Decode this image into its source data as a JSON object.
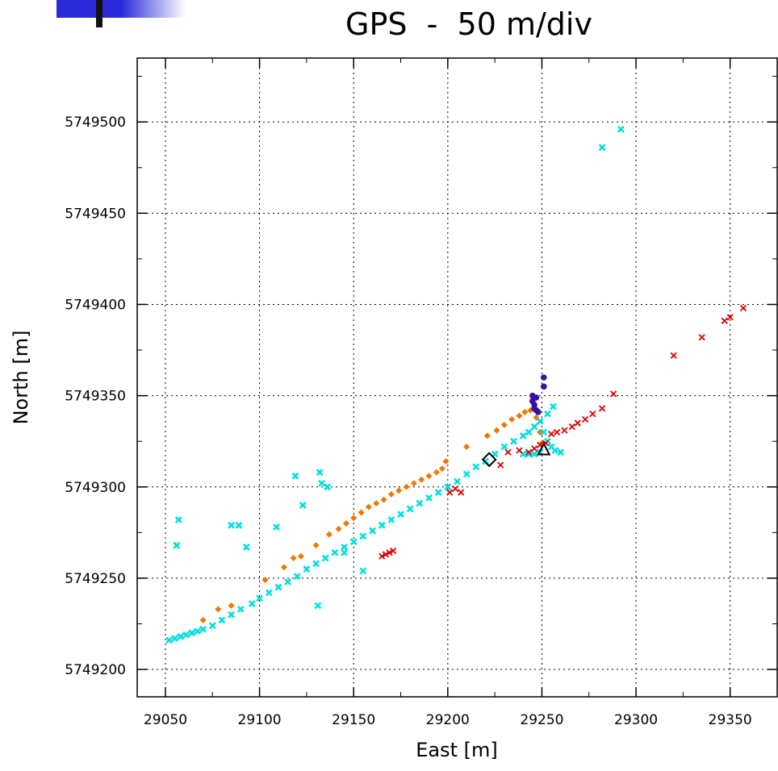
{
  "title": "GPS  -  50 m/div",
  "colors": {
    "orange": "#f07800",
    "cyan": "#00e0e0",
    "red": "#e00000",
    "purple": "#3a10a0",
    "logo_blue": "#2a2ad8"
  },
  "chart_data": {
    "type": "scatter",
    "xlabel": "East [m]",
    "ylabel": "North [m]",
    "xlim": [
      29035,
      29375
    ],
    "ylim": [
      5749185,
      5749535
    ],
    "xticks": [
      29050,
      29100,
      29150,
      29200,
      29250,
      29300,
      29350
    ],
    "yticks": [
      5749200,
      5749250,
      5749300,
      5749350,
      5749400,
      5749450,
      5749500
    ],
    "xtick_labels": [
      "29050",
      "29100",
      "29150",
      "29200",
      "29250",
      "29300",
      "29350"
    ],
    "ytick_labels": [
      "5749200",
      "5749250",
      "5749300",
      "5749350",
      "5749400",
      "5749450",
      "5749500"
    ],
    "grid": true,
    "series": [
      {
        "marker": "diamond-small",
        "color": "#f07800",
        "points": [
          [
            29070,
            5749227
          ],
          [
            29078,
            5749233
          ],
          [
            29085,
            5749235
          ],
          [
            29103,
            5749249
          ],
          [
            29113,
            5749256
          ],
          [
            29118,
            5749261
          ],
          [
            29122,
            5749262
          ],
          [
            29130,
            5749268
          ],
          [
            29137,
            5749274
          ],
          [
            29142,
            5749277
          ],
          [
            29146,
            5749280
          ],
          [
            29150,
            5749283
          ],
          [
            29154,
            5749286
          ],
          [
            29158,
            5749289
          ],
          [
            29162,
            5749291
          ],
          [
            29166,
            5749293
          ],
          [
            29170,
            5749296
          ],
          [
            29174,
            5749298
          ],
          [
            29178,
            5749300
          ],
          [
            29182,
            5749302
          ],
          [
            29186,
            5749304
          ],
          [
            29190,
            5749306
          ],
          [
            29194,
            5749308
          ],
          [
            29197,
            5749310
          ],
          [
            29199,
            5749314
          ],
          [
            29210,
            5749322
          ],
          [
            29221,
            5749328
          ],
          [
            29226,
            5749331
          ],
          [
            29230,
            5749334
          ],
          [
            29234,
            5749337
          ],
          [
            29238,
            5749339
          ],
          [
            29241,
            5749341
          ],
          [
            29244,
            5749342
          ],
          [
            29247,
            5749338
          ],
          [
            29249,
            5749330
          ],
          [
            29250,
            5749324
          ]
        ]
      },
      {
        "marker": "x-bold",
        "color": "#00e0e0",
        "points": [
          [
            29052,
            5749216
          ],
          [
            29055,
            5749217
          ],
          [
            29058,
            5749218
          ],
          [
            29061,
            5749219
          ],
          [
            29064,
            5749220
          ],
          [
            29067,
            5749221
          ],
          [
            29070,
            5749222
          ],
          [
            29075,
            5749224
          ],
          [
            29080,
            5749227
          ],
          [
            29085,
            5749230
          ],
          [
            29090,
            5749233
          ],
          [
            29096,
            5749236
          ],
          [
            29100,
            5749239
          ],
          [
            29105,
            5749242
          ],
          [
            29110,
            5749245
          ],
          [
            29115,
            5749248
          ],
          [
            29120,
            5749251
          ],
          [
            29125,
            5749255
          ],
          [
            29130,
            5749258
          ],
          [
            29135,
            5749261
          ],
          [
            29140,
            5749264
          ],
          [
            29145,
            5749267
          ],
          [
            29150,
            5749270
          ],
          [
            29155,
            5749273
          ],
          [
            29160,
            5749276
          ],
          [
            29165,
            5749279
          ],
          [
            29170,
            5749282
          ],
          [
            29175,
            5749285
          ],
          [
            29180,
            5749288
          ],
          [
            29185,
            5749291
          ],
          [
            29190,
            5749294
          ],
          [
            29195,
            5749297
          ],
          [
            29200,
            5749300
          ],
          [
            29205,
            5749303
          ],
          [
            29210,
            5749307
          ],
          [
            29215,
            5749311
          ],
          [
            29220,
            5749314
          ],
          [
            29225,
            5749318
          ],
          [
            29230,
            5749322
          ],
          [
            29235,
            5749325
          ],
          [
            29240,
            5749328
          ],
          [
            29243,
            5749330
          ],
          [
            29246,
            5749333
          ],
          [
            29249,
            5749336
          ],
          [
            29251,
            5749330
          ],
          [
            29253,
            5749325
          ],
          [
            29255,
            5749322
          ],
          [
            29257,
            5749320
          ],
          [
            29260,
            5749319
          ],
          [
            29249,
            5749319
          ],
          [
            29246,
            5749318
          ],
          [
            29243,
            5749318
          ],
          [
            29240,
            5749318
          ],
          [
            29057,
            5749282
          ],
          [
            29056,
            5749268
          ],
          [
            29085,
            5749279
          ],
          [
            29089,
            5749279
          ],
          [
            29093,
            5749267
          ],
          [
            29109,
            5749278
          ],
          [
            29119,
            5749306
          ],
          [
            29123,
            5749290
          ],
          [
            29132,
            5749308
          ],
          [
            29133,
            5749302
          ],
          [
            29136,
            5749300
          ],
          [
            29131,
            5749235
          ],
          [
            29145,
            5749264
          ],
          [
            29155,
            5749254
          ],
          [
            29282,
            5749486
          ],
          [
            29292,
            5749496
          ],
          [
            29253,
            5749340
          ],
          [
            29256,
            5749344
          ]
        ]
      },
      {
        "marker": "x-thin",
        "color": "#e00000",
        "points": [
          [
            29165,
            5749262
          ],
          [
            29167,
            5749263
          ],
          [
            29169,
            5749264
          ],
          [
            29171,
            5749265
          ],
          [
            29201,
            5749297
          ],
          [
            29204,
            5749299
          ],
          [
            29207,
            5749297
          ],
          [
            29228,
            5749312
          ],
          [
            29232,
            5749319
          ],
          [
            29238,
            5749320
          ],
          [
            29243,
            5749319
          ],
          [
            29246,
            5749321
          ],
          [
            29249,
            5749323
          ],
          [
            29252,
            5749324
          ],
          [
            29255,
            5749329
          ],
          [
            29258,
            5749330
          ],
          [
            29262,
            5749331
          ],
          [
            29266,
            5749333
          ],
          [
            29269,
            5749335
          ],
          [
            29273,
            5749337
          ],
          [
            29277,
            5749340
          ],
          [
            29282,
            5749343
          ],
          [
            29288,
            5749351
          ],
          [
            29320,
            5749372
          ],
          [
            29335,
            5749382
          ],
          [
            29347,
            5749391
          ],
          [
            29350,
            5749393
          ],
          [
            29357,
            5749398
          ]
        ]
      },
      {
        "marker": "dot",
        "color": "#3a10a0",
        "points": [
          [
            29245,
            5749350
          ],
          [
            29245,
            5749347
          ],
          [
            29246,
            5749345
          ],
          [
            29246,
            5749343
          ],
          [
            29247,
            5749342
          ],
          [
            29248,
            5749341
          ],
          [
            29251,
            5749360
          ],
          [
            29251,
            5749355
          ],
          [
            29247,
            5749349
          ]
        ]
      }
    ],
    "special_markers": [
      {
        "shape": "diamond",
        "x": 29222,
        "y": 5749315
      },
      {
        "shape": "triangle",
        "x": 29251,
        "y": 5749320
      }
    ]
  }
}
